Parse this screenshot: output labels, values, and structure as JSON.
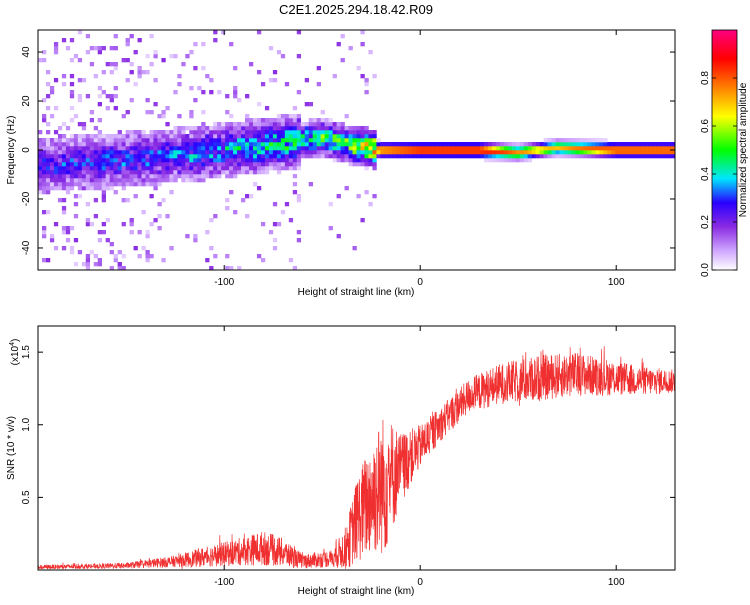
{
  "page_title": "C2E1.2025.294.18.42.R09",
  "chart_data": [
    {
      "type": "heatmap",
      "title": "C2E1.2025.294.18.42.R09",
      "xlabel": "Height of straight line (km)",
      "ylabel": "Frequency (Hz)",
      "xlim": [
        -195,
        130
      ],
      "ylim": [
        -49,
        49
      ],
      "x_ticks": [
        -100,
        0,
        100
      ],
      "y_ticks": [
        -40,
        -20,
        0,
        20,
        40
      ],
      "description_of_ridge": [
        {
          "x": -190,
          "freq": -6,
          "amplitude": 0.22
        },
        {
          "x": -150,
          "freq": -4,
          "amplitude": 0.25
        },
        {
          "x": -110,
          "freq": -1,
          "amplitude": 0.3
        },
        {
          "x": -70,
          "freq": 3,
          "amplitude": 0.4
        },
        {
          "x": -50,
          "freq": 5,
          "amplitude": 0.45
        },
        {
          "x": -35,
          "freq": 2,
          "amplitude": 0.5
        },
        {
          "x": -20,
          "freq": 0,
          "amplitude": 0.85
        },
        {
          "x": 0,
          "freq": 0,
          "amplitude": 0.95
        },
        {
          "x": 30,
          "freq": 0,
          "amplitude": 0.95
        },
        {
          "x": 50,
          "freq": -1,
          "amplitude": 0.75
        },
        {
          "x": 70,
          "freq": 1,
          "amplitude": 0.7
        },
        {
          "x": 100,
          "freq": 0,
          "amplitude": 0.9
        },
        {
          "x": 130,
          "freq": 0,
          "amplitude": 0.9
        }
      ],
      "colorbar": {
        "label": "Normalized spectral amplitude",
        "range": [
          0,
          1
        ],
        "ticks": [
          "0.0",
          "0.2",
          "0.4",
          "0.6",
          "0.8"
        ],
        "colors": [
          "#ffffff",
          "#cfa6ff",
          "#8a2be2",
          "#2a00ff",
          "#00e5ff",
          "#00ff00",
          "#ffff00",
          "#ff8000",
          "#ff0000",
          "#ff0080"
        ]
      }
    },
    {
      "type": "line",
      "xlabel": "Height of straight line (km)",
      "ylabel": "SNR (10 * v/v)",
      "multiplier_label": "(x10",
      "multiplier_exp": "4",
      "xlim": [
        -195,
        130
      ],
      "ylim": [
        0,
        1.68
      ],
      "x_ticks": [
        -100,
        0,
        100
      ],
      "y_ticks": [
        "0.5",
        "1.0",
        "1.5"
      ],
      "color": "#f03030",
      "envelope": [
        {
          "x": -195,
          "mean": 0.02,
          "noise": 0.015
        },
        {
          "x": -150,
          "mean": 0.03,
          "noise": 0.02
        },
        {
          "x": -125,
          "mean": 0.06,
          "noise": 0.04
        },
        {
          "x": -110,
          "mean": 0.09,
          "noise": 0.07
        },
        {
          "x": -95,
          "mean": 0.12,
          "noise": 0.09
        },
        {
          "x": -80,
          "mean": 0.15,
          "noise": 0.12
        },
        {
          "x": -70,
          "mean": 0.12,
          "noise": 0.1
        },
        {
          "x": -60,
          "mean": 0.06,
          "noise": 0.05
        },
        {
          "x": -45,
          "mean": 0.08,
          "noise": 0.06
        },
        {
          "x": -38,
          "mean": 0.15,
          "noise": 0.15
        },
        {
          "x": -32,
          "mean": 0.35,
          "noise": 0.3
        },
        {
          "x": -25,
          "mean": 0.5,
          "noise": 0.4
        },
        {
          "x": -18,
          "mean": 0.6,
          "noise": 0.5
        },
        {
          "x": -10,
          "mean": 0.7,
          "noise": 0.25
        },
        {
          "x": 0,
          "mean": 0.85,
          "noise": 0.15
        },
        {
          "x": 10,
          "mean": 1.0,
          "noise": 0.12
        },
        {
          "x": 25,
          "mean": 1.2,
          "noise": 0.12
        },
        {
          "x": 40,
          "mean": 1.28,
          "noise": 0.14
        },
        {
          "x": 60,
          "mean": 1.32,
          "noise": 0.16
        },
        {
          "x": 80,
          "mean": 1.35,
          "noise": 0.15
        },
        {
          "x": 100,
          "mean": 1.32,
          "noise": 0.12
        },
        {
          "x": 115,
          "mean": 1.3,
          "noise": 0.1
        },
        {
          "x": 130,
          "mean": 1.3,
          "noise": 0.08
        }
      ]
    }
  ]
}
